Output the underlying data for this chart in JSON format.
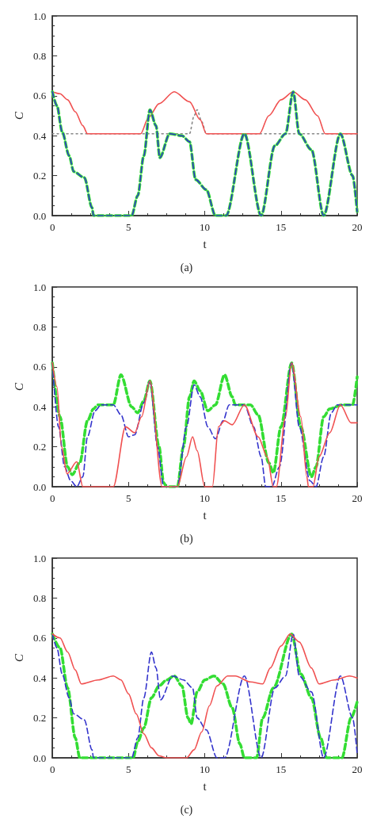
{
  "chart_data": [
    {
      "type": "line",
      "xlabel": "t",
      "ylabel": "C",
      "annotations": [
        "(a)"
      ],
      "xlim": [
        0,
        20
      ],
      "ylim": [
        0,
        1
      ],
      "xticks": [
        0,
        5,
        10,
        15,
        20
      ],
      "yticks": [
        {
          "value": 0,
          "label": "0.0"
        },
        {
          "value": 0.2,
          "label": "0.2"
        },
        {
          "value": 0.4,
          "label": "0.4"
        },
        {
          "value": 0.6,
          "label": "0.6"
        },
        {
          "value": 0.8,
          "label": "0.8"
        },
        {
          "value": 1,
          "label": "1.0"
        }
      ],
      "grid": false,
      "marker": "none",
      "series": [
        {
          "color": "#888888",
          "line_style": "dotted",
          "x": [
            0,
            9.0,
            9.3,
            9.5,
            9.8,
            10.1,
            20
          ],
          "values": [
            0.41,
            0.41,
            0.5,
            0.53,
            0.47,
            0.41,
            0.41
          ]
        },
        {
          "color": "#f05050",
          "line_style": "solid",
          "x": [
            0,
            0.5,
            1,
            1.5,
            2,
            2.3,
            5.8,
            6.3,
            7,
            8,
            9,
            9.7,
            10.1,
            13.6,
            14.2,
            15,
            15.8,
            16.6,
            17.4,
            17.9,
            20
          ],
          "values": [
            0.62,
            0.61,
            0.58,
            0.52,
            0.45,
            0.41,
            0.41,
            0.49,
            0.56,
            0.62,
            0.57,
            0.48,
            0.41,
            0.41,
            0.5,
            0.58,
            0.62,
            0.58,
            0.5,
            0.41,
            0.41
          ]
        },
        {
          "color": "#33dd33",
          "line_style": "dashed",
          "x": [
            0,
            0.3,
            0.64,
            1.1,
            1.4,
            2.1,
            2.6,
            2.7,
            5.2,
            5.6,
            6,
            6.4,
            6.8,
            7.05,
            7.7,
            8.5,
            9.0,
            9.4,
            10.1,
            10.7,
            11.4,
            12.6,
            13.7,
            14.6,
            15.3,
            15.8,
            16.2,
            17.0,
            17.8,
            18.9,
            19.7,
            20
          ],
          "values": [
            0.62,
            0.55,
            0.42,
            0.3,
            0.22,
            0.19,
            0.04,
            0,
            0,
            0.1,
            0.3,
            0.53,
            0.45,
            0.29,
            0.41,
            0.4,
            0.37,
            0.18,
            0.13,
            0,
            0,
            0.41,
            0,
            0.35,
            0.41,
            0.62,
            0.41,
            0.33,
            0,
            0.41,
            0.2,
            0.02
          ]
        },
        {
          "color": "#3333cc",
          "line_style": "dashed",
          "x": [
            0,
            0.3,
            0.64,
            1.1,
            1.4,
            2.1,
            2.6,
            2.7,
            5.2,
            5.6,
            6,
            6.4,
            6.8,
            7.05,
            7.7,
            8.5,
            9.0,
            9.4,
            10.1,
            10.7,
            11.4,
            12.6,
            13.7,
            14.6,
            15.3,
            15.8,
            16.2,
            17.0,
            17.8,
            18.9,
            19.7,
            20
          ],
          "values": [
            0.62,
            0.55,
            0.42,
            0.3,
            0.22,
            0.19,
            0.04,
            0,
            0,
            0.1,
            0.3,
            0.53,
            0.45,
            0.29,
            0.41,
            0.4,
            0.37,
            0.18,
            0.13,
            0,
            0,
            0.41,
            0,
            0.35,
            0.41,
            0.62,
            0.41,
            0.33,
            0,
            0.41,
            0.2,
            0.02
          ]
        }
      ]
    },
    {
      "type": "line",
      "xlabel": "t",
      "ylabel": "C",
      "annotations": [
        "(b)"
      ],
      "xlim": [
        0,
        20
      ],
      "ylim": [
        0,
        1
      ],
      "xticks": [
        0,
        5,
        10,
        15,
        20
      ],
      "yticks": [
        {
          "value": 0,
          "label": "0.0"
        },
        {
          "value": 0.2,
          "label": "0.2"
        },
        {
          "value": 0.4,
          "label": "0.4"
        },
        {
          "value": 0.6,
          "label": "0.6"
        },
        {
          "value": 0.8,
          "label": "0.8"
        },
        {
          "value": 1,
          "label": "1.0"
        }
      ],
      "grid": false,
      "marker": "none",
      "series": [
        {
          "color": "#33dd33",
          "line_style": "dashed",
          "x": [
            0,
            0.5,
            1,
            1.3,
            1.8,
            2.3,
            2.7,
            3,
            4,
            4.5,
            5.2,
            5.6,
            6,
            6.4,
            7,
            7.3,
            7.5,
            8.2,
            8.6,
            9.0,
            9.3,
            9.7,
            10.2,
            10.7,
            11.3,
            11.8,
            12.0,
            13,
            13.5,
            14.2,
            14.5,
            15,
            15.7,
            16.3,
            17,
            17.3,
            17.8,
            18.2,
            19,
            19.7,
            20
          ],
          "values": [
            0.62,
            0.35,
            0.1,
            0.06,
            0.12,
            0.33,
            0.39,
            0.41,
            0.41,
            0.56,
            0.4,
            0.37,
            0.43,
            0.53,
            0.2,
            0.02,
            0,
            0,
            0.2,
            0.45,
            0.53,
            0.48,
            0.38,
            0.41,
            0.56,
            0.45,
            0.41,
            0.41,
            0.36,
            0.12,
            0.07,
            0.3,
            0.62,
            0.3,
            0.05,
            0.1,
            0.35,
            0.39,
            0.41,
            0.41,
            0.55
          ]
        },
        {
          "color": "#3333cc",
          "line_style": "dashed",
          "x": [
            0,
            0.4,
            0.8,
            1.2,
            1.6,
            2.0,
            2.3,
            2.8,
            3.2,
            4,
            4.5,
            5,
            5.4,
            6,
            6.4,
            6.9,
            7.3,
            8.2,
            8.8,
            9.3,
            9.7,
            10.2,
            10.7,
            11.2,
            11.6,
            12.6,
            13.2,
            13.7,
            14.0,
            14.4,
            14.9,
            15.7,
            16.2,
            16.9,
            17.3,
            17.8,
            18.3,
            18.7,
            20
          ],
          "values": [
            0.62,
            0.3,
            0.1,
            0.03,
            0,
            0.05,
            0.25,
            0.38,
            0.41,
            0.41,
            0.36,
            0.25,
            0.26,
            0.42,
            0.53,
            0.2,
            0,
            0,
            0.3,
            0.51,
            0.45,
            0.3,
            0.24,
            0.33,
            0.41,
            0.41,
            0.3,
            0.15,
            0,
            0,
            0.1,
            0.62,
            0.3,
            0.03,
            0,
            0.15,
            0.37,
            0.41,
            0.41
          ]
        },
        {
          "color": "#f05050",
          "line_style": "solid",
          "x": [
            0,
            0.3,
            0.6,
            0.96,
            1.6,
            2.0,
            4.0,
            4.8,
            5.4,
            5.85,
            6.4,
            7.2,
            8.2,
            8.8,
            9.2,
            9.5,
            10.0,
            10.5,
            10.9,
            11.3,
            11.8,
            12.6,
            13.5,
            14.1,
            14.5,
            14.7,
            15.3,
            15.7,
            16.3,
            16.7,
            16.8,
            17.1,
            17.5,
            18.2,
            18.9,
            19.6,
            20
          ],
          "values": [
            0.62,
            0.5,
            0.2,
            0.065,
            0.125,
            0,
            0,
            0.3,
            0.27,
            0.35,
            0.53,
            0,
            0,
            0.15,
            0.25,
            0.18,
            0,
            0,
            0.3,
            0.33,
            0.31,
            0.41,
            0.25,
            0.15,
            0,
            0,
            0.35,
            0.62,
            0.35,
            0.05,
            0,
            0,
            0.15,
            0.27,
            0.41,
            0.32,
            0.32
          ]
        }
      ]
    },
    {
      "type": "line",
      "xlabel": "t",
      "ylabel": "C",
      "annotations": [
        "(c)"
      ],
      "xlim": [
        0,
        20
      ],
      "ylim": [
        0,
        1
      ],
      "xticks": [
        0,
        5,
        10,
        15,
        20
      ],
      "yticks": [
        {
          "value": 0,
          "label": "0.0"
        },
        {
          "value": 0.2,
          "label": "0.2"
        },
        {
          "value": 0.4,
          "label": "0.4"
        },
        {
          "value": 0.6,
          "label": "0.6"
        },
        {
          "value": 0.8,
          "label": "0.8"
        },
        {
          "value": 1,
          "label": "1.0"
        }
      ],
      "grid": false,
      "marker": "none",
      "series": [
        {
          "color": "#33dd33",
          "line_style": "dashed",
          "x": [
            0,
            0.5,
            1,
            1.5,
            1.8,
            5.3,
            5.6,
            6,
            6.5,
            7,
            7.5,
            8,
            8.5,
            8.9,
            9.1,
            9.5,
            10,
            10.6,
            11.2,
            11.8,
            12.3,
            12.6,
            13.4,
            13.8,
            14.5,
            15.7,
            16.3,
            17,
            17.6,
            18,
            19,
            19.6,
            20
          ],
          "values": [
            0.62,
            0.55,
            0.35,
            0.1,
            0,
            0,
            0.08,
            0.15,
            0.3,
            0.36,
            0.39,
            0.41,
            0.36,
            0.2,
            0.17,
            0.33,
            0.39,
            0.41,
            0.37,
            0.25,
            0.07,
            0,
            0,
            0.2,
            0.35,
            0.62,
            0.42,
            0.3,
            0.1,
            0,
            0,
            0.2,
            0.28
          ]
        },
        {
          "color": "#3333cc",
          "line_style": "dashed",
          "x": [
            0,
            0.3,
            0.64,
            1.1,
            1.4,
            2.1,
            2.6,
            2.7,
            5.2,
            5.6,
            6,
            6.5,
            6.8,
            7.1,
            7.9,
            8.6,
            9.2,
            9.5,
            10.1,
            10.8,
            11.3,
            12.6,
            13.7,
            14.6,
            15.3,
            15.8,
            16.2,
            17.0,
            17.8,
            18.9,
            19.7,
            20
          ],
          "values": [
            0.62,
            0.55,
            0.42,
            0.3,
            0.22,
            0.19,
            0.04,
            0,
            0,
            0.1,
            0.3,
            0.53,
            0.45,
            0.29,
            0.41,
            0.39,
            0.35,
            0.2,
            0.14,
            0,
            0,
            0.41,
            0,
            0.35,
            0.41,
            0.62,
            0.41,
            0.33,
            0,
            0.41,
            0.2,
            0.02
          ]
        },
        {
          "color": "#f05050",
          "line_style": "solid",
          "x": [
            0,
            0.5,
            1,
            1.5,
            1.9,
            3,
            4,
            4.5,
            5,
            5.5,
            6,
            6.5,
            7,
            7.5,
            8.8,
            9.3,
            9.8,
            10.3,
            10.8,
            11.5,
            12,
            13,
            13.8,
            14.3,
            15,
            15.6,
            16.2,
            17,
            17.5,
            18.5,
            19.5,
            20
          ],
          "values": [
            0.62,
            0.6,
            0.53,
            0.44,
            0.37,
            0.39,
            0.41,
            0.39,
            0.32,
            0.22,
            0.12,
            0.05,
            0.01,
            0,
            0,
            0.04,
            0.13,
            0.26,
            0.36,
            0.41,
            0.41,
            0.38,
            0.37,
            0.45,
            0.56,
            0.62,
            0.58,
            0.45,
            0.37,
            0.39,
            0.41,
            0.4
          ]
        }
      ]
    }
  ]
}
